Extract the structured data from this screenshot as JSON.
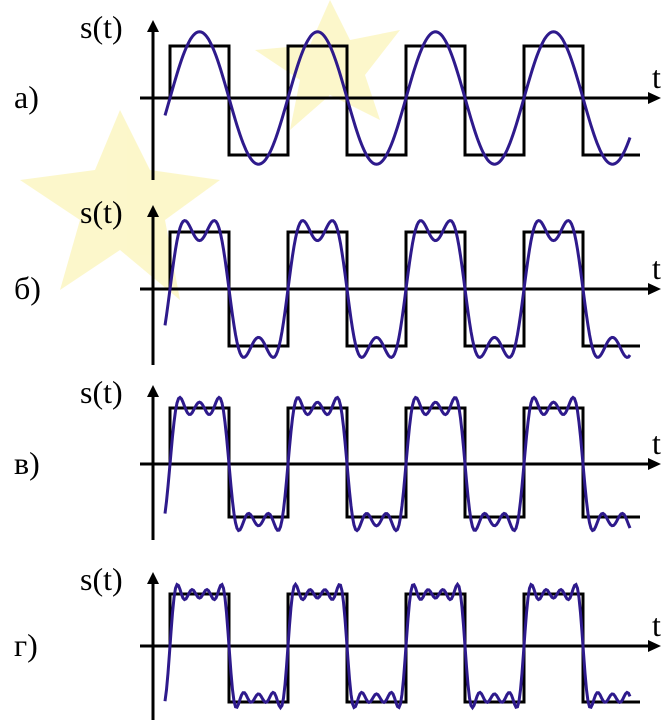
{
  "panels": [
    {
      "label": "а)",
      "y_axis": "s(t)",
      "x_axis": "t"
    },
    {
      "label": "б)",
      "y_axis": "s(t)",
      "x_axis": "t"
    },
    {
      "label": "в)",
      "y_axis": "s(t)",
      "x_axis": "t"
    },
    {
      "label": "г)",
      "y_axis": "s(t)",
      "x_axis": "t"
    }
  ]
}
